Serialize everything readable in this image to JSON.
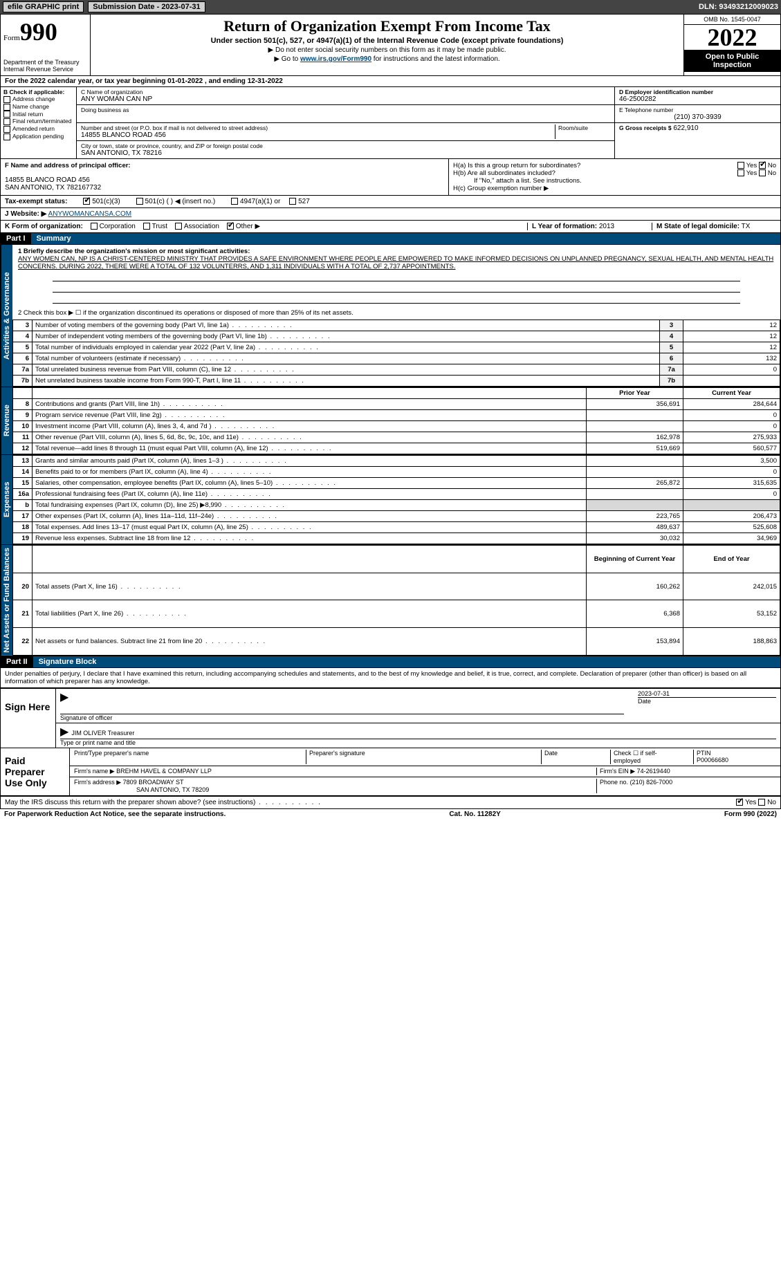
{
  "topbar": {
    "efile": "efile GRAPHIC print",
    "submission_label": "Submission Date - 2023-07-31",
    "dln_label": "DLN: 93493212009023"
  },
  "header": {
    "form_word": "Form",
    "form_number": "990",
    "dept": "Department of the Treasury\nInternal Revenue Service",
    "title": "Return of Organization Exempt From Income Tax",
    "subtitle": "Under section 501(c), 527, or 4947(a)(1) of the Internal Revenue Code (except private foundations)",
    "note1": "▶ Do not enter social security numbers on this form as it may be made public.",
    "note2_pre": "▶ Go to ",
    "note2_link": "www.irs.gov/Form990",
    "note2_post": " for instructions and the latest information.",
    "omb": "OMB No. 1545-0047",
    "year": "2022",
    "otp": "Open to Public Inspection"
  },
  "cy": "For the 2022 calendar year, or tax year beginning 01-01-2022   , and ending 12-31-2022",
  "boxB": {
    "title": "B Check if applicable:",
    "items": [
      "Address change",
      "Name change",
      "Initial return",
      "Final return/terminated",
      "Amended return",
      "Application pending"
    ]
  },
  "boxC": {
    "name_label": "C Name of organization",
    "name": "ANY WOMAN CAN NP",
    "dba_label": "Doing business as",
    "addr_label": "Number and street (or P.O. box if mail is not delivered to street address)",
    "room_label": "Room/suite",
    "addr": "14855 BLANCO ROAD 456",
    "city_label": "City or town, state or province, country, and ZIP or foreign postal code",
    "city": "SAN ANTONIO, TX  78216"
  },
  "boxD": {
    "label": "D Employer identification number",
    "value": "46-2500282"
  },
  "boxE": {
    "label": "E Telephone number",
    "value": "(210) 370-3939"
  },
  "boxG": {
    "label": "G Gross receipts $",
    "value": "622,910"
  },
  "boxF": {
    "label": "F  Name and address of principal officer:",
    "line1": "14855 BLANCO ROAD 456",
    "line2": "SAN ANTONIO, TX  782167732"
  },
  "boxH": {
    "ha": "H(a)  Is this a group return for subordinates?",
    "hb": "H(b)  Are all subordinates included?",
    "hb_note": "If \"No,\" attach a list. See instructions.",
    "hc": "H(c)  Group exemption number ▶"
  },
  "taxexempt": {
    "label": "Tax-exempt status:",
    "opts": [
      "501(c)(3)",
      "501(c) (  ) ◀ (insert no.)",
      "4947(a)(1) or",
      "527"
    ]
  },
  "boxJ": {
    "label": "J    Website: ▶",
    "value": "ANYWOMANCANSA.COM"
  },
  "boxK": {
    "label": "K Form of organization:",
    "opts": [
      "Corporation",
      "Trust",
      "Association",
      "Other ▶"
    ]
  },
  "boxL": {
    "label": "L Year of formation:",
    "value": "2013"
  },
  "boxM": {
    "label": "M State of legal domicile:",
    "value": "TX"
  },
  "part1": {
    "tag": "Part I",
    "title": "Summary"
  },
  "mission": {
    "q1": "1  Briefly describe the organization's mission or most significant activities:",
    "text": "ANY WOMEN CAN, NP IS A CHRIST-CENTERED MINISTRY THAT PROVIDES A SAFE ENVIRONMENT WHERE PEOPLE ARE EMPOWERED TO MAKE INFORMED DECISIONS ON UNPLANNED PREGNANCY, SEXUAL HEALTH, AND MENTAL HEALTH CONCERNS. DURING 2022, THERE WERE A TOTAL OF 132 VOLUNTERRS, AND 1,311 INDIVIDUALS WITH A TOTAL OF 2,737 APPOINTMENTS.",
    "q2": "2   Check this box ▶ ☐  if the organization discontinued its operations or disposed of more than 25% of its net assets."
  },
  "vtabs": {
    "ag": "Activities & Governance",
    "rev": "Revenue",
    "exp": "Expenses",
    "nab": "Net Assets or Fund Balances"
  },
  "lines_ag": [
    {
      "n": "3",
      "d": "Number of voting members of the governing body (Part VI, line 1a)",
      "box": "3",
      "v": "12"
    },
    {
      "n": "4",
      "d": "Number of independent voting members of the governing body (Part VI, line 1b)",
      "box": "4",
      "v": "12"
    },
    {
      "n": "5",
      "d": "Total number of individuals employed in calendar year 2022 (Part V, line 2a)",
      "box": "5",
      "v": "12"
    },
    {
      "n": "6",
      "d": "Total number of volunteers (estimate if necessary)",
      "box": "6",
      "v": "132"
    },
    {
      "n": "7a",
      "d": "Total unrelated business revenue from Part VIII, column (C), line 12",
      "box": "7a",
      "v": "0"
    },
    {
      "n": "7b",
      "d": "Net unrelated business taxable income from Form 990-T, Part I, line 11",
      "box": "7b",
      "v": ""
    }
  ],
  "col_hdrs": {
    "prior": "Prior Year",
    "current": "Current Year"
  },
  "lines_rev": [
    {
      "n": "8",
      "d": "Contributions and grants (Part VIII, line 1h)",
      "p": "356,691",
      "c": "284,644"
    },
    {
      "n": "9",
      "d": "Program service revenue (Part VIII, line 2g)",
      "p": "",
      "c": "0"
    },
    {
      "n": "10",
      "d": "Investment income (Part VIII, column (A), lines 3, 4, and 7d )",
      "p": "",
      "c": "0"
    },
    {
      "n": "11",
      "d": "Other revenue (Part VIII, column (A), lines 5, 6d, 8c, 9c, 10c, and 11e)",
      "p": "162,978",
      "c": "275,933"
    },
    {
      "n": "12",
      "d": "Total revenue—add lines 8 through 11 (must equal Part VIII, column (A), line 12)",
      "p": "519,669",
      "c": "560,577"
    }
  ],
  "lines_exp": [
    {
      "n": "13",
      "d": "Grants and similar amounts paid (Part IX, column (A), lines 1–3 )",
      "p": "",
      "c": "3,500"
    },
    {
      "n": "14",
      "d": "Benefits paid to or for members (Part IX, column (A), line 4)",
      "p": "",
      "c": "0"
    },
    {
      "n": "15",
      "d": "Salaries, other compensation, employee benefits (Part IX, column (A), lines 5–10)",
      "p": "265,872",
      "c": "315,635"
    },
    {
      "n": "16a",
      "d": "Professional fundraising fees (Part IX, column (A), line 11e)",
      "p": "",
      "c": "0"
    },
    {
      "n": "b",
      "d": "Total fundraising expenses (Part IX, column (D), line 25) ▶8,990",
      "p": "GREY",
      "c": "GREY"
    },
    {
      "n": "17",
      "d": "Other expenses (Part IX, column (A), lines 11a–11d, 11f–24e)",
      "p": "223,765",
      "c": "206,473"
    },
    {
      "n": "18",
      "d": "Total expenses. Add lines 13–17 (must equal Part IX, column (A), line 25)",
      "p": "489,637",
      "c": "525,608"
    },
    {
      "n": "19",
      "d": "Revenue less expenses. Subtract line 18 from line 12",
      "p": "30,032",
      "c": "34,969"
    }
  ],
  "col_hdrs2": {
    "beg": "Beginning of Current Year",
    "end": "End of Year"
  },
  "lines_nab": [
    {
      "n": "20",
      "d": "Total assets (Part X, line 16)",
      "p": "160,262",
      "c": "242,015"
    },
    {
      "n": "21",
      "d": "Total liabilities (Part X, line 26)",
      "p": "6,368",
      "c": "53,152"
    },
    {
      "n": "22",
      "d": "Net assets or fund balances. Subtract line 21 from line 20",
      "p": "153,894",
      "c": "188,863"
    }
  ],
  "part2": {
    "tag": "Part II",
    "title": "Signature Block"
  },
  "penalties": "Under penalties of perjury, I declare that I have examined this return, including accompanying schedules and statements, and to the best of my knowledge and belief, it is true, correct, and complete. Declaration of preparer (other than officer) is based on all information of which preparer has any knowledge.",
  "sign": {
    "here": "Sign Here",
    "sig_officer": "Signature of officer",
    "date_val": "2023-07-31",
    "date_lbl": "Date",
    "name_val": "JIM OLIVER  Treasurer",
    "name_lbl": "Type or print name and title"
  },
  "paid": {
    "title": "Paid Preparer Use Only",
    "h1": "Print/Type preparer's name",
    "h2": "Preparer's signature",
    "h3": "Date",
    "h4": "Check ☐ if self-employed",
    "h5_lbl": "PTIN",
    "h5_val": "P00066680",
    "firm_name_lbl": "Firm's name    ▶",
    "firm_name": "BREHM HAVEL & COMPANY LLP",
    "firm_ein_lbl": "Firm's EIN ▶",
    "firm_ein": "74-2619440",
    "firm_addr_lbl": "Firm's address ▶",
    "firm_addr1": "7809 BROADWAY ST",
    "firm_addr2": "SAN ANTONIO, TX  78209",
    "phone_lbl": "Phone no.",
    "phone": "(210) 826-7000"
  },
  "discuss": "May the IRS discuss this return with the preparer shown above? (see instructions)",
  "footer": {
    "left": "For Paperwork Reduction Act Notice, see the separate instructions.",
    "mid": "Cat. No. 11282Y",
    "right": "Form 990 (2022)"
  },
  "yn": {
    "yes": "Yes",
    "no": "No"
  }
}
